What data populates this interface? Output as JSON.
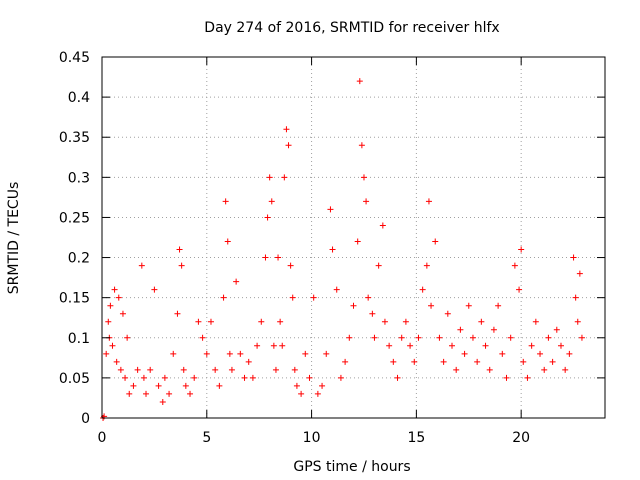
{
  "chart_data": {
    "type": "scatter",
    "title": "Day 274 of 2016, SRMTID for receiver hlfx",
    "xlabel": "GPS time / hours",
    "ylabel": "SRMTID / TECUs",
    "xlim": [
      0,
      24
    ],
    "ylim": [
      0,
      0.45
    ],
    "xticks": [
      0,
      5,
      10,
      15,
      20
    ],
    "xtick_labels": [
      "0",
      "5",
      "10",
      "15",
      "20"
    ],
    "yticks": [
      0,
      0.05,
      0.1,
      0.15,
      0.2,
      0.25,
      0.3,
      0.35,
      0.4,
      0.45
    ],
    "ytick_labels": [
      "0",
      "0.05",
      "0.1",
      "0.15",
      "0.2",
      "0.25",
      "0.3",
      "0.35",
      "0.4",
      "0.45"
    ],
    "grid": true,
    "series": [
      {
        "name": "SRMTID",
        "color": "#ff0000",
        "marker": "plus",
        "x": [
          0.05,
          0.1,
          0.2,
          0.3,
          0.35,
          0.4,
          0.5,
          0.6,
          0.7,
          0.8,
          0.9,
          1.0,
          1.1,
          1.2,
          1.3,
          1.5,
          1.7,
          1.9,
          2.0,
          2.1,
          2.3,
          2.5,
          2.7,
          2.9,
          3.0,
          3.2,
          3.4,
          3.6,
          3.7,
          3.8,
          3.9,
          4.0,
          4.2,
          4.4,
          4.6,
          4.8,
          5.0,
          5.2,
          5.4,
          5.6,
          5.8,
          5.9,
          6.0,
          6.1,
          6.2,
          6.4,
          6.6,
          6.8,
          7.0,
          7.2,
          7.4,
          7.6,
          7.8,
          7.9,
          8.0,
          8.1,
          8.2,
          8.3,
          8.4,
          8.5,
          8.6,
          8.7,
          8.8,
          8.9,
          9.0,
          9.1,
          9.2,
          9.3,
          9.5,
          9.7,
          9.9,
          10.1,
          10.3,
          10.5,
          10.7,
          10.9,
          11.0,
          11.2,
          11.4,
          11.6,
          11.8,
          12.0,
          12.2,
          12.3,
          12.4,
          12.5,
          12.6,
          12.7,
          12.9,
          13.0,
          13.2,
          13.4,
          13.5,
          13.7,
          13.9,
          14.1,
          14.3,
          14.5,
          14.7,
          14.9,
          15.1,
          15.3,
          15.5,
          15.6,
          15.7,
          15.9,
          16.1,
          16.3,
          16.5,
          16.7,
          16.9,
          17.1,
          17.3,
          17.5,
          17.7,
          17.9,
          18.1,
          18.3,
          18.5,
          18.7,
          18.9,
          19.1,
          19.3,
          19.5,
          19.7,
          19.9,
          20.0,
          20.1,
          20.3,
          20.5,
          20.7,
          20.9,
          21.1,
          21.3,
          21.5,
          21.7,
          21.9,
          22.1,
          22.3,
          22.5,
          22.6,
          22.7,
          22.8,
          22.9
        ],
        "y": [
          0.0,
          0.002,
          0.08,
          0.12,
          0.1,
          0.14,
          0.09,
          0.16,
          0.07,
          0.15,
          0.06,
          0.13,
          0.05,
          0.1,
          0.03,
          0.04,
          0.06,
          0.19,
          0.05,
          0.03,
          0.06,
          0.16,
          0.04,
          0.02,
          0.05,
          0.03,
          0.08,
          0.13,
          0.21,
          0.19,
          0.06,
          0.04,
          0.03,
          0.05,
          0.12,
          0.1,
          0.08,
          0.12,
          0.06,
          0.04,
          0.15,
          0.27,
          0.22,
          0.08,
          0.06,
          0.17,
          0.08,
          0.05,
          0.07,
          0.05,
          0.09,
          0.12,
          0.2,
          0.25,
          0.3,
          0.27,
          0.09,
          0.06,
          0.2,
          0.12,
          0.09,
          0.3,
          0.36,
          0.34,
          0.19,
          0.15,
          0.06,
          0.04,
          0.03,
          0.08,
          0.05,
          0.15,
          0.03,
          0.04,
          0.08,
          0.26,
          0.21,
          0.16,
          0.05,
          0.07,
          0.1,
          0.14,
          0.22,
          0.42,
          0.34,
          0.3,
          0.27,
          0.15,
          0.13,
          0.1,
          0.19,
          0.24,
          0.12,
          0.09,
          0.07,
          0.05,
          0.1,
          0.12,
          0.09,
          0.07,
          0.1,
          0.16,
          0.19,
          0.27,
          0.14,
          0.22,
          0.1,
          0.07,
          0.13,
          0.09,
          0.06,
          0.11,
          0.08,
          0.14,
          0.1,
          0.07,
          0.12,
          0.09,
          0.06,
          0.11,
          0.14,
          0.08,
          0.05,
          0.1,
          0.19,
          0.16,
          0.21,
          0.07,
          0.05,
          0.09,
          0.12,
          0.08,
          0.06,
          0.1,
          0.07,
          0.11,
          0.09,
          0.06,
          0.08,
          0.2,
          0.15,
          0.12,
          0.18,
          0.1
        ]
      }
    ]
  }
}
